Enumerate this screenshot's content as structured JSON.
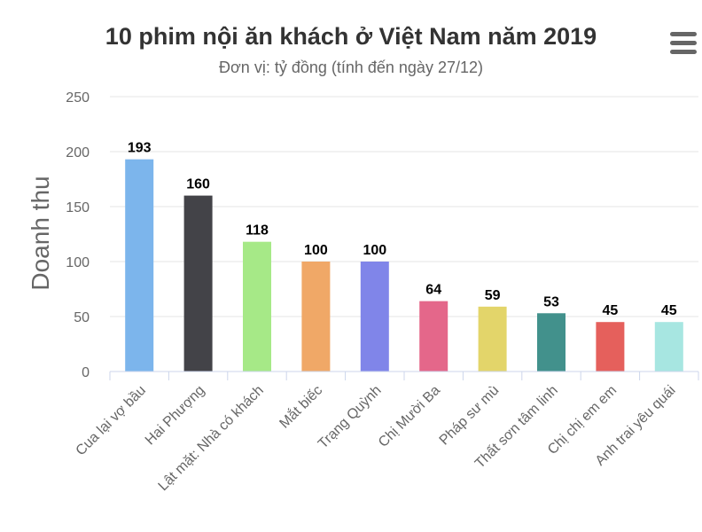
{
  "chart_data": {
    "type": "bar",
    "title": "10 phim nội ăn khách ở Việt Nam năm 2019",
    "subtitle": "Đơn vị: tỷ đồng (tính đến ngày 27/12)",
    "ylabel": "Doanh thu",
    "ylim": [
      0,
      250
    ],
    "yticks": [
      0,
      50,
      100,
      150,
      200,
      250
    ],
    "grid": true,
    "legend": "none",
    "categories": [
      "Cua lại vợ bầu",
      "Hai Phượng",
      "Lật mặt: Nhà có khách",
      "Mắt biếc",
      "Trạng Quỳnh",
      "Chị Mười Ba",
      "Pháp sư mù",
      "Thất sơn tâm linh",
      "Chị chị em em",
      "Anh trai yêu quái"
    ],
    "values": [
      193,
      160,
      118,
      100,
      100,
      64,
      59,
      53,
      45,
      45
    ],
    "colors": [
      "#7cb5ec",
      "#434348",
      "#a6e987",
      "#f0a867",
      "#8085e9",
      "#e4678a",
      "#e3d56a",
      "#42918c",
      "#e5605c",
      "#a7e6e1"
    ]
  },
  "menu": {
    "icon": "hamburger-icon"
  }
}
